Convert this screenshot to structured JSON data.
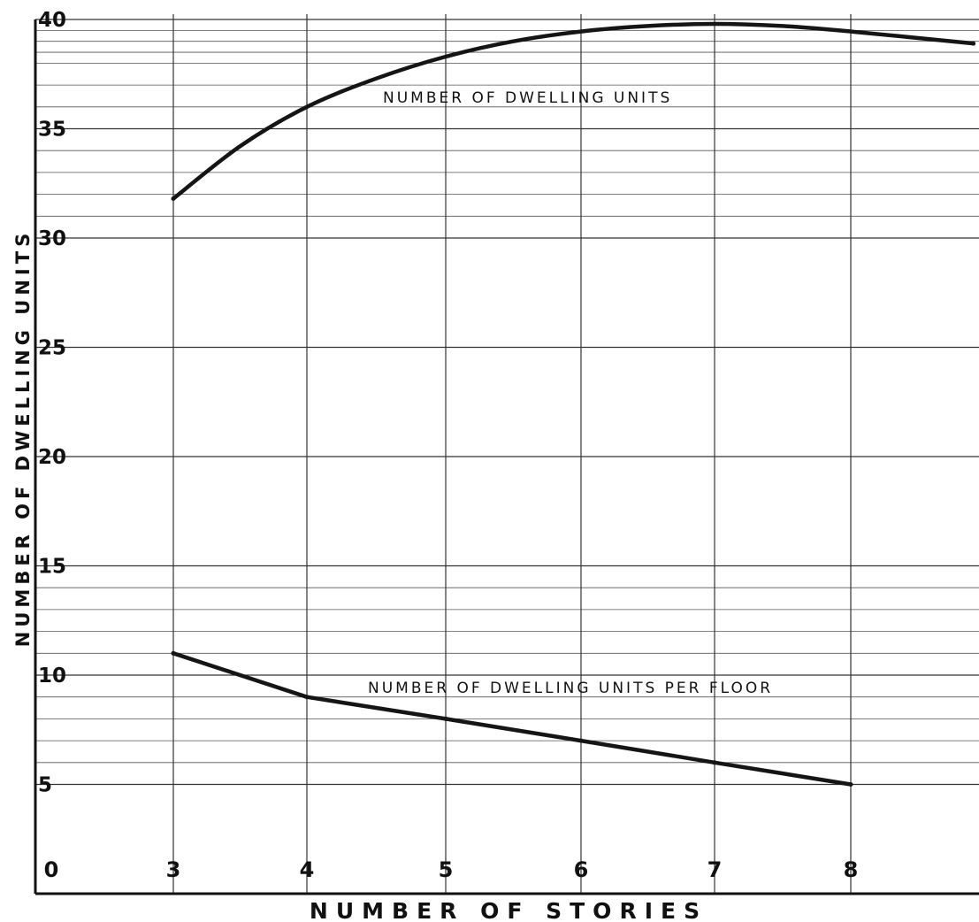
{
  "chart_data": {
    "type": "line",
    "title": "",
    "xlabel": "NUMBER OF STORIES",
    "ylabel": "NUMBER OF DWELLING UNITS",
    "xlim": [
      0,
      8
    ],
    "ylim": [
      0,
      40
    ],
    "x_ticks": [
      "0",
      "3",
      "4",
      "5",
      "6",
      "7",
      "8"
    ],
    "y_ticks": [
      "5",
      "10",
      "15",
      "20",
      "25",
      "30",
      "35",
      "40"
    ],
    "y_tick_values": [
      5,
      10,
      15,
      20,
      25,
      30,
      35,
      40
    ],
    "x_tick_values": [
      0,
      3,
      4,
      5,
      6,
      7,
      8
    ],
    "grid": true,
    "annotations": [
      "NUMBER OF DWELLING UNITS",
      "NUMBER OF DWELLING UNITS PER FLOOR"
    ],
    "series": [
      {
        "x": [
          3,
          3.5,
          4,
          4.5,
          5,
          5.5,
          6,
          6.5,
          7,
          7.5,
          8,
          8.9
        ],
        "values": [
          31.8,
          34.2,
          36.0,
          37.3,
          38.3,
          39.0,
          39.45,
          39.7,
          39.8,
          39.7,
          39.45,
          38.9
        ]
      },
      {
        "x": [
          3,
          4,
          5,
          6,
          7,
          8
        ],
        "values": [
          11,
          9,
          8,
          7,
          6,
          5
        ]
      }
    ],
    "colors": {
      "ink": "#151515",
      "paper": "#ffffff"
    }
  }
}
